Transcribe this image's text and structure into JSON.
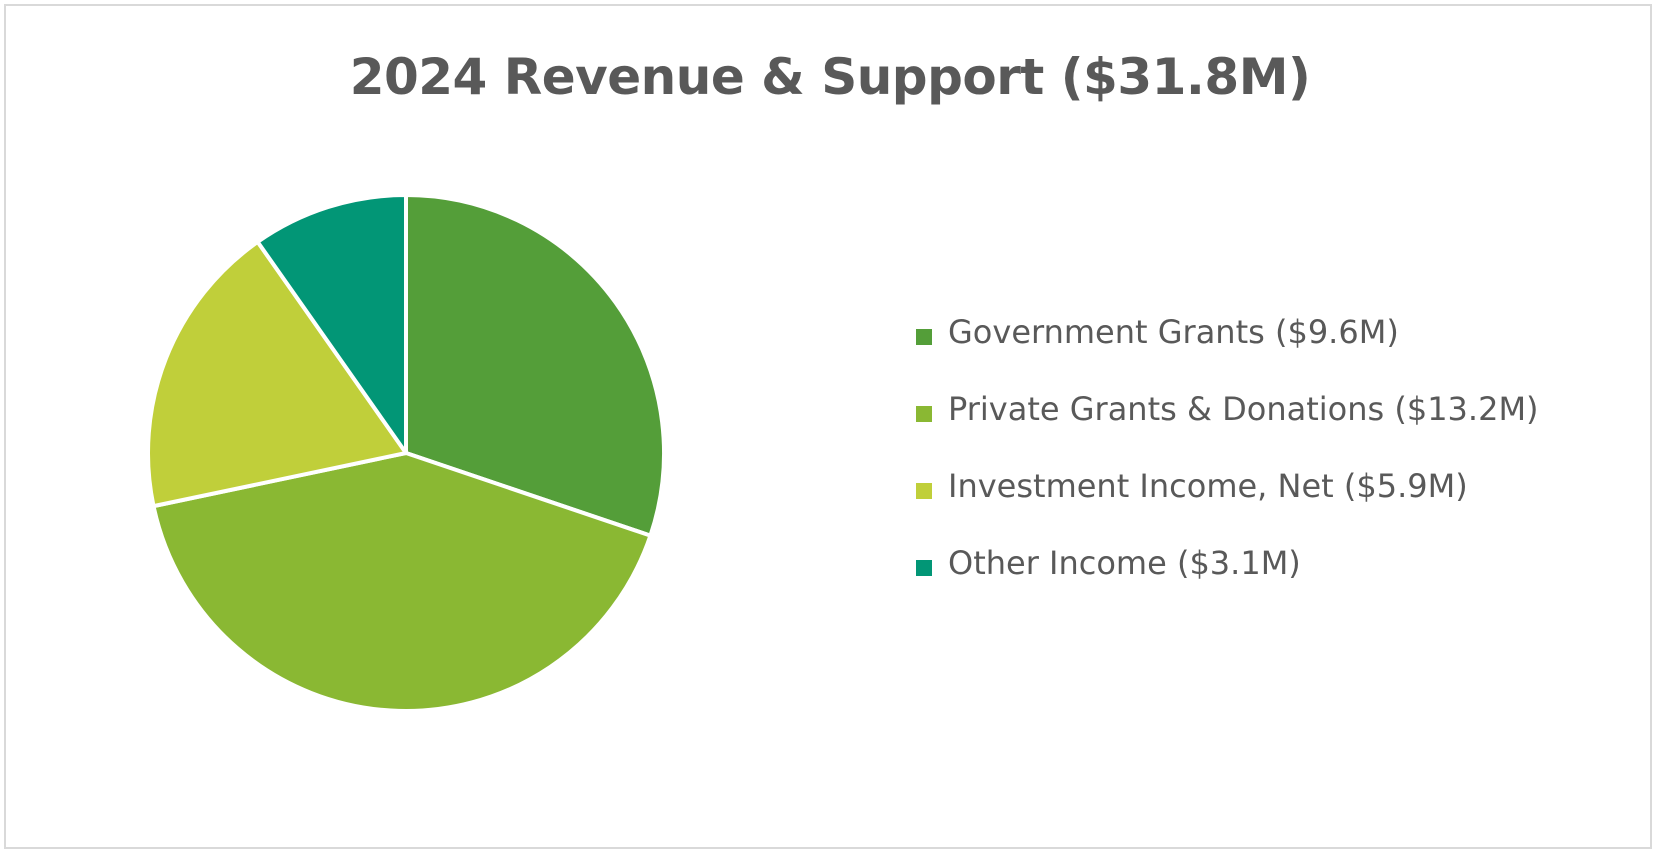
{
  "chart_data": {
    "type": "pie",
    "title": "2024 Revenue & Support ($31.8M)",
    "unit": "$M",
    "categories": [
      "Government Grants ($9.6M)",
      "Private Grants & Donations ($13.2M)",
      "Investment Income, Net ($5.9M)",
      "Other Income ($3.1M)"
    ],
    "values": [
      9.6,
      13.2,
      5.9,
      3.1
    ],
    "colors": [
      "#549e39",
      "#8ab833",
      "#c0cf3a",
      "#029676"
    ],
    "start_angle_deg": 0,
    "direction": "clockwise",
    "legend_position": "right",
    "slice_separator_color": "#ffffff"
  }
}
